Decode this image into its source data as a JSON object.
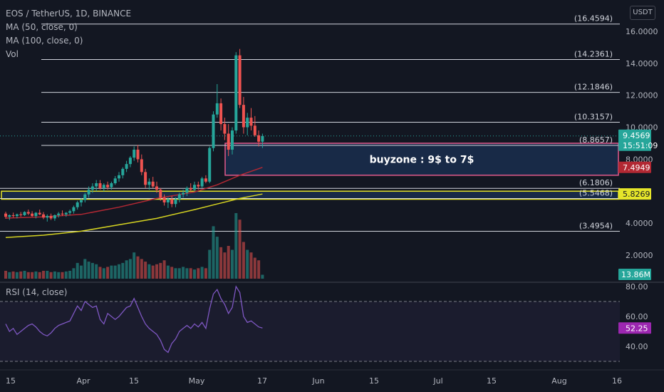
{
  "header": {
    "title": "EOS / TetherUS, 1D, BINANCE",
    "indicators": [
      "MA (50, close, 0)",
      "MA (100, close, 0)",
      "Vol"
    ],
    "currency": "USDT"
  },
  "rsi_label": "RSI (14, close)",
  "colors": {
    "background": "#131722",
    "up": "#26a69a",
    "down": "#ef5350",
    "ma50": "#b22833",
    "ma100": "#d6d421",
    "rsi": "#7e57c2",
    "buyzone_border": "#e25a8c",
    "support_border": "#e5e52a",
    "zone_fill": "#1e3a66"
  },
  "chart_data": [
    {
      "type": "candlestick",
      "title": "EOS / TetherUS, 1D, BINANCE",
      "ylim": [
        3.0,
        17.0
      ],
      "y_ticks": [
        "16.0000",
        "14.0000",
        "12.0000",
        "10.0000",
        "8.0000",
        "4.0000",
        "2.0000"
      ],
      "x_ticks": [
        "15",
        "Apr",
        "15",
        "May",
        "17",
        "Jun",
        "15",
        "Jul",
        "15",
        "Aug",
        "16"
      ],
      "fib_levels": [
        {
          "label": "(16.4594)",
          "value": 16.4594
        },
        {
          "label": "(14.2361)",
          "value": 14.2361
        },
        {
          "label": "(12.1846)",
          "value": 12.1846
        },
        {
          "label": "(10.3157)",
          "value": 10.3157
        },
        {
          "label": "(8.8657)",
          "value": 8.8657
        },
        {
          "label": "(6.1806)",
          "value": 6.1806
        },
        {
          "label": "(5.5468)",
          "value": 5.5468
        },
        {
          "label": "(3.4954)",
          "value": 3.4954
        }
      ],
      "zones": [
        {
          "name": "buyzone",
          "label": "buyzone : 9$ to 7$",
          "from": 9.0,
          "to": 7.0
        },
        {
          "name": "support",
          "label": "",
          "from": 6.0,
          "to": 5.5
        }
      ],
      "price_badges": [
        {
          "label": "9.4569",
          "sub": "15:51:09",
          "value": 9.4569,
          "color": "#26a69a"
        },
        {
          "label": "7.4949",
          "value": 7.4949,
          "color": "#b22833"
        },
        {
          "label": "5.8269",
          "value": 5.8269,
          "color": "#e5e52a"
        }
      ],
      "volume_badge": "13.86M",
      "candles": [
        {
          "o": 4.6,
          "h": 4.72,
          "l": 4.28,
          "c": 4.4
        },
        {
          "o": 4.4,
          "h": 4.55,
          "l": 4.2,
          "c": 4.5
        },
        {
          "o": 4.5,
          "h": 4.66,
          "l": 4.35,
          "c": 4.45
        },
        {
          "o": 4.45,
          "h": 4.6,
          "l": 4.3,
          "c": 4.55
        },
        {
          "o": 4.55,
          "h": 4.7,
          "l": 4.4,
          "c": 4.5
        },
        {
          "o": 4.5,
          "h": 4.75,
          "l": 4.45,
          "c": 4.7
        },
        {
          "o": 4.7,
          "h": 4.85,
          "l": 4.5,
          "c": 4.6
        },
        {
          "o": 4.6,
          "h": 4.75,
          "l": 4.4,
          "c": 4.45
        },
        {
          "o": 4.45,
          "h": 4.7,
          "l": 4.3,
          "c": 4.65
        },
        {
          "o": 4.65,
          "h": 4.85,
          "l": 4.5,
          "c": 4.55
        },
        {
          "o": 4.55,
          "h": 4.7,
          "l": 4.25,
          "c": 4.35
        },
        {
          "o": 4.35,
          "h": 4.55,
          "l": 4.1,
          "c": 4.45
        },
        {
          "o": 4.45,
          "h": 4.6,
          "l": 4.2,
          "c": 4.3
        },
        {
          "o": 4.3,
          "h": 4.55,
          "l": 4.15,
          "c": 4.5
        },
        {
          "o": 4.5,
          "h": 4.7,
          "l": 4.35,
          "c": 4.6
        },
        {
          "o": 4.6,
          "h": 4.8,
          "l": 4.45,
          "c": 4.55
        },
        {
          "o": 4.55,
          "h": 4.7,
          "l": 4.4,
          "c": 4.65
        },
        {
          "o": 4.65,
          "h": 4.85,
          "l": 4.5,
          "c": 4.75
        },
        {
          "o": 4.75,
          "h": 5.1,
          "l": 4.6,
          "c": 5.0
        },
        {
          "o": 5.0,
          "h": 5.4,
          "l": 4.85,
          "c": 5.3
        },
        {
          "o": 5.3,
          "h": 5.55,
          "l": 5.05,
          "c": 5.45
        },
        {
          "o": 5.45,
          "h": 5.9,
          "l": 5.3,
          "c": 5.8
        },
        {
          "o": 5.8,
          "h": 6.3,
          "l": 5.6,
          "c": 6.1
        },
        {
          "o": 6.1,
          "h": 6.5,
          "l": 5.9,
          "c": 6.3
        },
        {
          "o": 6.3,
          "h": 6.7,
          "l": 6.0,
          "c": 6.5
        },
        {
          "o": 6.5,
          "h": 6.7,
          "l": 6.1,
          "c": 6.2
        },
        {
          "o": 6.2,
          "h": 6.5,
          "l": 6.0,
          "c": 6.4
        },
        {
          "o": 6.4,
          "h": 6.6,
          "l": 6.1,
          "c": 6.25
        },
        {
          "o": 6.25,
          "h": 6.6,
          "l": 6.1,
          "c": 6.5
        },
        {
          "o": 6.5,
          "h": 6.95,
          "l": 6.4,
          "c": 6.8
        },
        {
          "o": 6.8,
          "h": 7.2,
          "l": 6.6,
          "c": 7.0
        },
        {
          "o": 7.0,
          "h": 7.5,
          "l": 6.8,
          "c": 7.4
        },
        {
          "o": 7.4,
          "h": 7.9,
          "l": 7.2,
          "c": 7.7
        },
        {
          "o": 7.7,
          "h": 8.2,
          "l": 7.5,
          "c": 8.1
        },
        {
          "o": 8.1,
          "h": 8.8,
          "l": 7.9,
          "c": 8.6
        },
        {
          "o": 8.6,
          "h": 8.9,
          "l": 7.8,
          "c": 8.0
        },
        {
          "o": 8.0,
          "h": 8.3,
          "l": 7.0,
          "c": 7.2
        },
        {
          "o": 7.2,
          "h": 7.4,
          "l": 6.2,
          "c": 6.4
        },
        {
          "o": 6.4,
          "h": 6.8,
          "l": 6.1,
          "c": 6.6
        },
        {
          "o": 6.6,
          "h": 6.9,
          "l": 6.2,
          "c": 6.3
        },
        {
          "o": 6.3,
          "h": 6.6,
          "l": 5.9,
          "c": 6.1
        },
        {
          "o": 6.1,
          "h": 6.2,
          "l": 5.4,
          "c": 5.6
        },
        {
          "o": 5.6,
          "h": 5.8,
          "l": 5.1,
          "c": 5.3
        },
        {
          "o": 5.3,
          "h": 5.6,
          "l": 4.95,
          "c": 5.5
        },
        {
          "o": 5.5,
          "h": 5.7,
          "l": 5.0,
          "c": 5.2
        },
        {
          "o": 5.2,
          "h": 5.6,
          "l": 5.0,
          "c": 5.5
        },
        {
          "o": 5.5,
          "h": 5.9,
          "l": 5.3,
          "c": 5.8
        },
        {
          "o": 5.8,
          "h": 6.1,
          "l": 5.6,
          "c": 5.9
        },
        {
          "o": 5.9,
          "h": 6.3,
          "l": 5.7,
          "c": 6.2
        },
        {
          "o": 6.2,
          "h": 6.5,
          "l": 6.0,
          "c": 6.1
        },
        {
          "o": 6.1,
          "h": 6.6,
          "l": 6.0,
          "c": 6.4
        },
        {
          "o": 6.4,
          "h": 6.6,
          "l": 6.1,
          "c": 6.3
        },
        {
          "o": 6.3,
          "h": 6.9,
          "l": 6.2,
          "c": 6.8
        },
        {
          "o": 6.8,
          "h": 7.0,
          "l": 6.5,
          "c": 6.6
        },
        {
          "o": 6.6,
          "h": 8.8,
          "l": 6.5,
          "c": 8.7
        },
        {
          "o": 8.7,
          "h": 11.0,
          "l": 8.5,
          "c": 10.8
        },
        {
          "o": 10.8,
          "h": 12.7,
          "l": 10.6,
          "c": 11.5
        },
        {
          "o": 11.5,
          "h": 11.8,
          "l": 9.8,
          "c": 10.2
        },
        {
          "o": 10.2,
          "h": 10.6,
          "l": 9.2,
          "c": 9.6
        },
        {
          "o": 9.6,
          "h": 10.2,
          "l": 8.2,
          "c": 8.6
        },
        {
          "o": 8.6,
          "h": 10.0,
          "l": 8.3,
          "c": 9.8
        },
        {
          "o": 9.8,
          "h": 14.7,
          "l": 9.6,
          "c": 14.5
        },
        {
          "o": 14.5,
          "h": 14.9,
          "l": 11.2,
          "c": 11.4
        },
        {
          "o": 11.4,
          "h": 11.9,
          "l": 9.6,
          "c": 10.0
        },
        {
          "o": 10.0,
          "h": 10.9,
          "l": 9.5,
          "c": 10.6
        },
        {
          "o": 10.6,
          "h": 11.2,
          "l": 9.8,
          "c": 10.1
        },
        {
          "o": 10.1,
          "h": 10.7,
          "l": 9.4,
          "c": 9.5
        },
        {
          "o": 9.5,
          "h": 9.8,
          "l": 8.8,
          "c": 9.1
        },
        {
          "o": 9.1,
          "h": 9.6,
          "l": 8.7,
          "c": 9.4569
        }
      ],
      "ma50": [
        [
          0,
          4.32
        ],
        [
          10,
          4.4
        ],
        [
          20,
          4.55
        ],
        [
          30,
          5.0
        ],
        [
          40,
          5.55
        ],
        [
          50,
          5.95
        ],
        [
          56,
          6.4
        ],
        [
          62,
          7.0
        ],
        [
          68,
          7.4949
        ]
      ],
      "ma100": [
        [
          0,
          3.1
        ],
        [
          10,
          3.25
        ],
        [
          20,
          3.5
        ],
        [
          30,
          3.9
        ],
        [
          40,
          4.3
        ],
        [
          50,
          4.85
        ],
        [
          56,
          5.2
        ],
        [
          62,
          5.55
        ],
        [
          68,
          5.8269
        ]
      ],
      "volume": [
        0.6,
        0.5,
        0.55,
        0.5,
        0.55,
        0.6,
        0.5,
        0.5,
        0.55,
        0.5,
        0.6,
        0.6,
        0.5,
        0.55,
        0.5,
        0.5,
        0.55,
        0.6,
        0.8,
        1.2,
        1.0,
        1.5,
        1.3,
        1.2,
        1.1,
        0.9,
        0.8,
        0.9,
        1.0,
        1.0,
        1.1,
        1.2,
        1.4,
        1.5,
        2.0,
        1.7,
        1.5,
        1.3,
        1.1,
        1.0,
        1.1,
        1.2,
        1.4,
        1.0,
        0.9,
        0.8,
        0.8,
        0.9,
        0.8,
        0.8,
        0.7,
        0.8,
        0.9,
        0.8,
        2.2,
        4.0,
        3.2,
        2.4,
        2.0,
        2.5,
        2.2,
        5.0,
        4.5,
        2.8,
        2.2,
        2.0,
        1.6,
        1.4,
        0.3
      ]
    },
    {
      "type": "line",
      "title": "RSI (14, close)",
      "ylim": [
        25,
        85
      ],
      "y_ticks": [
        "80.00",
        "60.00",
        "40.00"
      ],
      "current_label": "52.25",
      "current_value": 52.25,
      "values": [
        55,
        50,
        52,
        48,
        50,
        52,
        54,
        55,
        53,
        50,
        48,
        47,
        49,
        52,
        54,
        55,
        56,
        57,
        62,
        67,
        64,
        70,
        68,
        66,
        67,
        58,
        55,
        62,
        60,
        58,
        60,
        63,
        66,
        67,
        72,
        66,
        60,
        55,
        52,
        50,
        48,
        44,
        38,
        36,
        42,
        45,
        50,
        52,
        54,
        52,
        55,
        53,
        56,
        52,
        65,
        75,
        78,
        72,
        68,
        62,
        66,
        80,
        76,
        60,
        56,
        57,
        55,
        53,
        52.25
      ]
    }
  ]
}
